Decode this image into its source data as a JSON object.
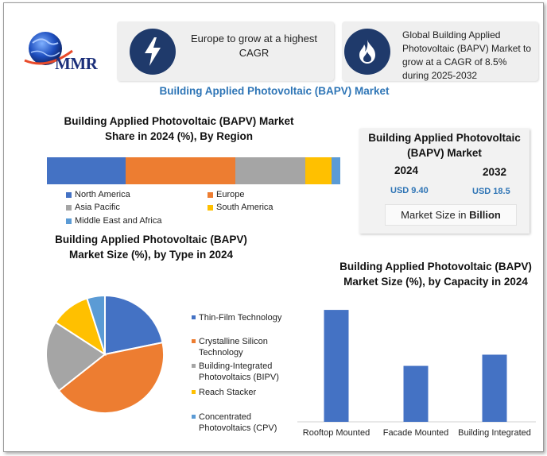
{
  "logo": {
    "text": "MMR"
  },
  "banner1": {
    "text": "Europe to grow at a highest CAGR",
    "icon": "lightning-bolt-icon"
  },
  "banner2": {
    "text": "Global Building Applied Photovoltaic (BAPV) Market to grow at a CAGR of 8.5% during 2025-2032",
    "icon": "flame-icon"
  },
  "main_title": "Building Applied Photovoltaic (BAPV) Market",
  "market_card": {
    "title": "Building Applied Photovoltaic (BAPV) Market",
    "year1": "2024",
    "value1": "USD 9.40",
    "year2": "2032",
    "value2": "USD 18.5",
    "footer_prefix": "Market Size in ",
    "footer_bold": "Billion"
  },
  "colors": {
    "blue": "#4472c4",
    "orange": "#ed7d31",
    "gray": "#a5a5a5",
    "yellow": "#ffc000",
    "lightblue": "#5b9bd5",
    "accent_text": "#2e74b5",
    "title_blue": "#2e75b6"
  },
  "chart_data": [
    {
      "type": "bar",
      "orientation": "horizontal-stacked",
      "title": "Building Applied Photovoltaic (BAPV) Market Share in 2024 (%), By Region",
      "series": [
        {
          "name": "North America",
          "values": [
            27
          ],
          "color": "#4472c4"
        },
        {
          "name": "Europe",
          "values": [
            38
          ],
          "color": "#ed7d31"
        },
        {
          "name": "Asia Pacific",
          "values": [
            24
          ],
          "color": "#a5a5a5"
        },
        {
          "name": "South America",
          "values": [
            9
          ],
          "color": "#ffc000"
        },
        {
          "name": "Middle East and Africa",
          "values": [
            3
          ],
          "color": "#5b9bd5"
        }
      ]
    },
    {
      "type": "pie",
      "title": "Building Applied Photovoltaic (BAPV) Market Size (%), by Type in 2024",
      "labels": [
        "Thin-Film Technology",
        "Crystalline Silicon Technology",
        "Building-Integrated Photovoltaics (BIPV)",
        "Reach Stacker",
        "Concentrated Photovoltaics (CPV)"
      ],
      "values": [
        22,
        43,
        20,
        11,
        5
      ],
      "colors": [
        "#4472c4",
        "#ed7d31",
        "#a5a5a5",
        "#ffc000",
        "#5b9bd5"
      ]
    },
    {
      "type": "bar",
      "title": "Building Applied Photovoltaic (BAPV) Market Size (%), by Capacity in 2024",
      "categories": [
        "Rooftop Mounted",
        "Facade Mounted",
        "Building Integrated"
      ],
      "values": [
        50,
        25,
        30
      ],
      "ylim": [
        0,
        55
      ],
      "color": "#4472c4"
    }
  ]
}
